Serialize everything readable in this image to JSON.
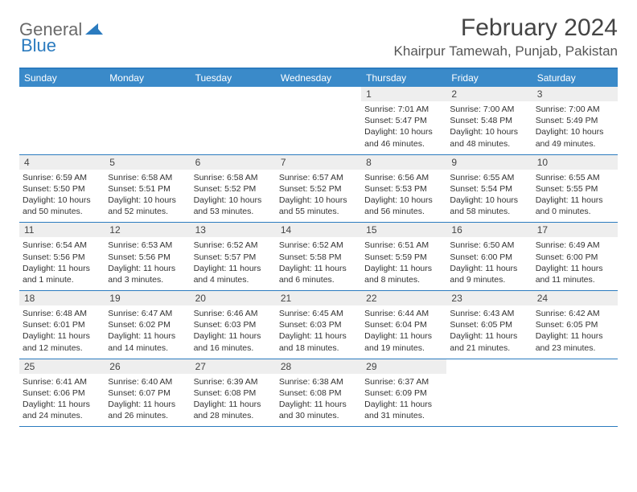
{
  "logo": {
    "part1": "General",
    "part2": "Blue"
  },
  "title": "February 2024",
  "location": "Khairpur Tamewah, Punjab, Pakistan",
  "colors": {
    "header_bg": "#3a8ac9",
    "border": "#2b7bbf",
    "daybar": "#eeeeee",
    "text": "#333333",
    "title": "#444444"
  },
  "weekdays": [
    "Sunday",
    "Monday",
    "Tuesday",
    "Wednesday",
    "Thursday",
    "Friday",
    "Saturday"
  ],
  "weeks": [
    [
      {
        "day": "",
        "sunrise": "",
        "sunset": "",
        "daylight": ""
      },
      {
        "day": "",
        "sunrise": "",
        "sunset": "",
        "daylight": ""
      },
      {
        "day": "",
        "sunrise": "",
        "sunset": "",
        "daylight": ""
      },
      {
        "day": "",
        "sunrise": "",
        "sunset": "",
        "daylight": ""
      },
      {
        "day": "1",
        "sunrise": "Sunrise: 7:01 AM",
        "sunset": "Sunset: 5:47 PM",
        "daylight": "Daylight: 10 hours and 46 minutes."
      },
      {
        "day": "2",
        "sunrise": "Sunrise: 7:00 AM",
        "sunset": "Sunset: 5:48 PM",
        "daylight": "Daylight: 10 hours and 48 minutes."
      },
      {
        "day": "3",
        "sunrise": "Sunrise: 7:00 AM",
        "sunset": "Sunset: 5:49 PM",
        "daylight": "Daylight: 10 hours and 49 minutes."
      }
    ],
    [
      {
        "day": "4",
        "sunrise": "Sunrise: 6:59 AM",
        "sunset": "Sunset: 5:50 PM",
        "daylight": "Daylight: 10 hours and 50 minutes."
      },
      {
        "day": "5",
        "sunrise": "Sunrise: 6:58 AM",
        "sunset": "Sunset: 5:51 PM",
        "daylight": "Daylight: 10 hours and 52 minutes."
      },
      {
        "day": "6",
        "sunrise": "Sunrise: 6:58 AM",
        "sunset": "Sunset: 5:52 PM",
        "daylight": "Daylight: 10 hours and 53 minutes."
      },
      {
        "day": "7",
        "sunrise": "Sunrise: 6:57 AM",
        "sunset": "Sunset: 5:52 PM",
        "daylight": "Daylight: 10 hours and 55 minutes."
      },
      {
        "day": "8",
        "sunrise": "Sunrise: 6:56 AM",
        "sunset": "Sunset: 5:53 PM",
        "daylight": "Daylight: 10 hours and 56 minutes."
      },
      {
        "day": "9",
        "sunrise": "Sunrise: 6:55 AM",
        "sunset": "Sunset: 5:54 PM",
        "daylight": "Daylight: 10 hours and 58 minutes."
      },
      {
        "day": "10",
        "sunrise": "Sunrise: 6:55 AM",
        "sunset": "Sunset: 5:55 PM",
        "daylight": "Daylight: 11 hours and 0 minutes."
      }
    ],
    [
      {
        "day": "11",
        "sunrise": "Sunrise: 6:54 AM",
        "sunset": "Sunset: 5:56 PM",
        "daylight": "Daylight: 11 hours and 1 minute."
      },
      {
        "day": "12",
        "sunrise": "Sunrise: 6:53 AM",
        "sunset": "Sunset: 5:56 PM",
        "daylight": "Daylight: 11 hours and 3 minutes."
      },
      {
        "day": "13",
        "sunrise": "Sunrise: 6:52 AM",
        "sunset": "Sunset: 5:57 PM",
        "daylight": "Daylight: 11 hours and 4 minutes."
      },
      {
        "day": "14",
        "sunrise": "Sunrise: 6:52 AM",
        "sunset": "Sunset: 5:58 PM",
        "daylight": "Daylight: 11 hours and 6 minutes."
      },
      {
        "day": "15",
        "sunrise": "Sunrise: 6:51 AM",
        "sunset": "Sunset: 5:59 PM",
        "daylight": "Daylight: 11 hours and 8 minutes."
      },
      {
        "day": "16",
        "sunrise": "Sunrise: 6:50 AM",
        "sunset": "Sunset: 6:00 PM",
        "daylight": "Daylight: 11 hours and 9 minutes."
      },
      {
        "day": "17",
        "sunrise": "Sunrise: 6:49 AM",
        "sunset": "Sunset: 6:00 PM",
        "daylight": "Daylight: 11 hours and 11 minutes."
      }
    ],
    [
      {
        "day": "18",
        "sunrise": "Sunrise: 6:48 AM",
        "sunset": "Sunset: 6:01 PM",
        "daylight": "Daylight: 11 hours and 12 minutes."
      },
      {
        "day": "19",
        "sunrise": "Sunrise: 6:47 AM",
        "sunset": "Sunset: 6:02 PM",
        "daylight": "Daylight: 11 hours and 14 minutes."
      },
      {
        "day": "20",
        "sunrise": "Sunrise: 6:46 AM",
        "sunset": "Sunset: 6:03 PM",
        "daylight": "Daylight: 11 hours and 16 minutes."
      },
      {
        "day": "21",
        "sunrise": "Sunrise: 6:45 AM",
        "sunset": "Sunset: 6:03 PM",
        "daylight": "Daylight: 11 hours and 18 minutes."
      },
      {
        "day": "22",
        "sunrise": "Sunrise: 6:44 AM",
        "sunset": "Sunset: 6:04 PM",
        "daylight": "Daylight: 11 hours and 19 minutes."
      },
      {
        "day": "23",
        "sunrise": "Sunrise: 6:43 AM",
        "sunset": "Sunset: 6:05 PM",
        "daylight": "Daylight: 11 hours and 21 minutes."
      },
      {
        "day": "24",
        "sunrise": "Sunrise: 6:42 AM",
        "sunset": "Sunset: 6:05 PM",
        "daylight": "Daylight: 11 hours and 23 minutes."
      }
    ],
    [
      {
        "day": "25",
        "sunrise": "Sunrise: 6:41 AM",
        "sunset": "Sunset: 6:06 PM",
        "daylight": "Daylight: 11 hours and 24 minutes."
      },
      {
        "day": "26",
        "sunrise": "Sunrise: 6:40 AM",
        "sunset": "Sunset: 6:07 PM",
        "daylight": "Daylight: 11 hours and 26 minutes."
      },
      {
        "day": "27",
        "sunrise": "Sunrise: 6:39 AM",
        "sunset": "Sunset: 6:08 PM",
        "daylight": "Daylight: 11 hours and 28 minutes."
      },
      {
        "day": "28",
        "sunrise": "Sunrise: 6:38 AM",
        "sunset": "Sunset: 6:08 PM",
        "daylight": "Daylight: 11 hours and 30 minutes."
      },
      {
        "day": "29",
        "sunrise": "Sunrise: 6:37 AM",
        "sunset": "Sunset: 6:09 PM",
        "daylight": "Daylight: 11 hours and 31 minutes."
      },
      {
        "day": "",
        "sunrise": "",
        "sunset": "",
        "daylight": ""
      },
      {
        "day": "",
        "sunrise": "",
        "sunset": "",
        "daylight": ""
      }
    ]
  ]
}
